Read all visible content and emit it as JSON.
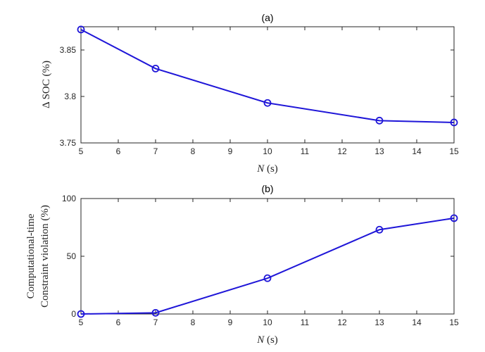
{
  "series_color": "#1f16d8",
  "chart_data": [
    {
      "type": "line",
      "title": "(a)",
      "xlabel_var": "N",
      "xlabel_unit": "(s)",
      "ylabel": "Δ SOC (%)",
      "xlim": [
        5,
        15
      ],
      "ylim": [
        3.75,
        3.875
      ],
      "xticks": [
        5,
        6,
        7,
        8,
        9,
        10,
        11,
        12,
        13,
        14,
        15
      ],
      "yticks": [
        3.75,
        3.8,
        3.85
      ],
      "ytick_labels": [
        "3.75",
        "3.8",
        "3.85"
      ],
      "grid": false,
      "x": [
        5,
        7,
        10,
        13,
        15
      ],
      "values": [
        3.872,
        3.83,
        3.793,
        3.774,
        3.772
      ]
    },
    {
      "type": "line",
      "title": "(b)",
      "xlabel_var": "N",
      "xlabel_unit": "(s)",
      "ylabel_lines": [
        "Computational-time",
        "Constraint violation (%)"
      ],
      "xlim": [
        5,
        15
      ],
      "ylim": [
        0,
        100
      ],
      "xticks": [
        5,
        6,
        7,
        8,
        9,
        10,
        11,
        12,
        13,
        14,
        15
      ],
      "yticks": [
        0,
        50,
        100
      ],
      "ytick_labels": [
        "0",
        "50",
        "100"
      ],
      "grid": false,
      "x": [
        5,
        7,
        10,
        13,
        15
      ],
      "values": [
        0,
        1,
        31,
        73,
        83
      ]
    }
  ]
}
